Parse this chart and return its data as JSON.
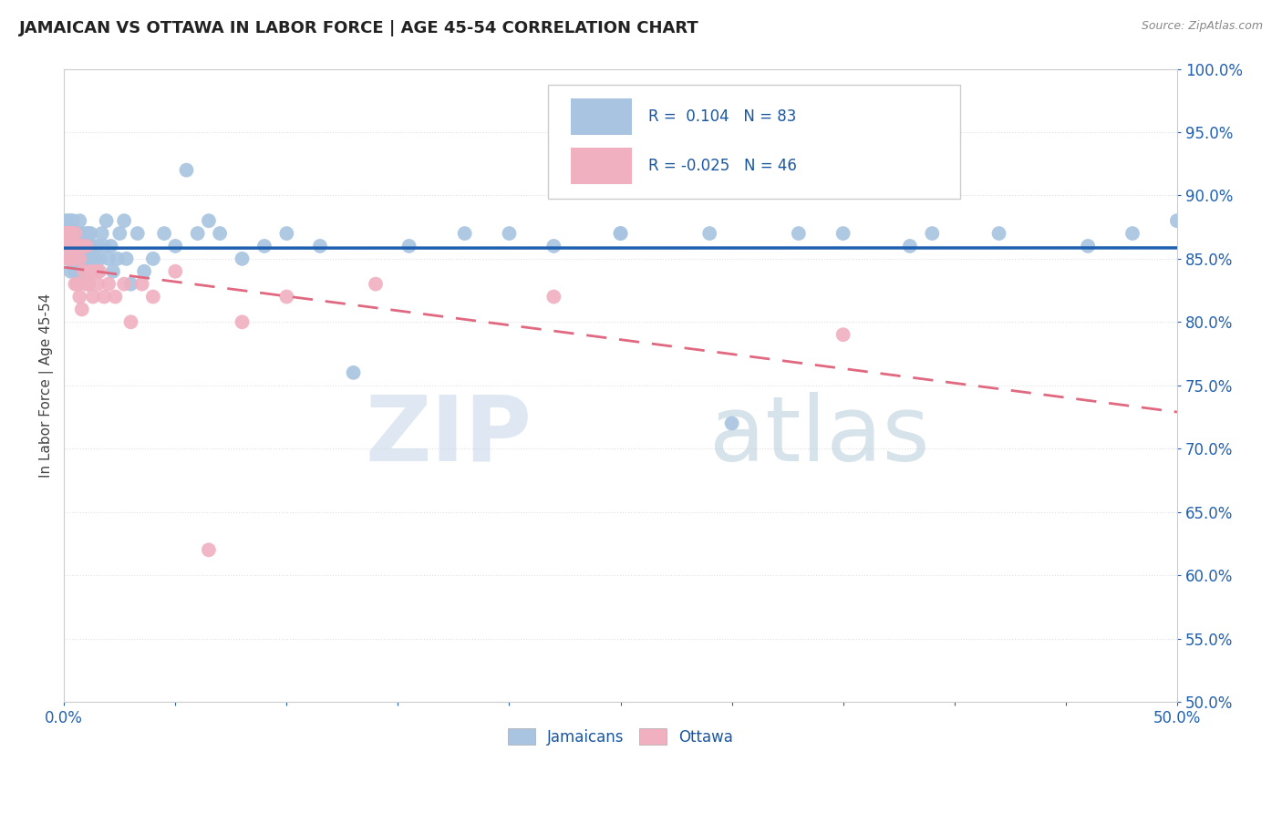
{
  "title": "JAMAICAN VS OTTAWA IN LABOR FORCE | AGE 45-54 CORRELATION CHART",
  "source": "Source: ZipAtlas.com",
  "ylabel": "In Labor Force | Age 45-54",
  "xlim": [
    0.0,
    0.5
  ],
  "ylim": [
    0.5,
    1.0
  ],
  "xticks": [
    0.0,
    0.05,
    0.1,
    0.15,
    0.2,
    0.25,
    0.3,
    0.35,
    0.4,
    0.45,
    0.5
  ],
  "yticks": [
    0.5,
    0.55,
    0.6,
    0.65,
    0.7,
    0.75,
    0.8,
    0.85,
    0.9,
    0.95,
    1.0
  ],
  "blue_color": "#a8c4e0",
  "pink_color": "#f0b0c0",
  "blue_line_color": "#2060b0",
  "pink_line_color": "#e06880",
  "R_blue": 0.104,
  "N_blue": 83,
  "R_pink": -0.025,
  "N_pink": 46,
  "legend_R_color": "#1a56a0",
  "watermark_blue": "#c8d8ea",
  "watermark_gray": "#b0c8d8",
  "jamaicans_x": [
    0.001,
    0.001,
    0.002,
    0.002,
    0.002,
    0.003,
    0.003,
    0.003,
    0.003,
    0.004,
    0.004,
    0.004,
    0.004,
    0.005,
    0.005,
    0.005,
    0.006,
    0.006,
    0.006,
    0.007,
    0.007,
    0.007,
    0.007,
    0.008,
    0.008,
    0.008,
    0.009,
    0.009,
    0.01,
    0.01,
    0.01,
    0.011,
    0.011,
    0.011,
    0.012,
    0.012,
    0.013,
    0.013,
    0.014,
    0.015,
    0.015,
    0.016,
    0.017,
    0.018,
    0.019,
    0.02,
    0.021,
    0.022,
    0.024,
    0.025,
    0.027,
    0.028,
    0.03,
    0.033,
    0.036,
    0.04,
    0.045,
    0.05,
    0.055,
    0.06,
    0.065,
    0.07,
    0.08,
    0.09,
    0.1,
    0.115,
    0.13,
    0.155,
    0.18,
    0.22,
    0.25,
    0.29,
    0.33,
    0.38,
    0.42,
    0.39,
    0.46,
    0.48,
    0.5,
    0.35,
    0.3,
    0.25,
    0.2
  ],
  "jamaicans_y": [
    0.87,
    0.88,
    0.85,
    0.87,
    0.88,
    0.84,
    0.86,
    0.87,
    0.88,
    0.85,
    0.86,
    0.87,
    0.88,
    0.84,
    0.86,
    0.87,
    0.83,
    0.85,
    0.87,
    0.84,
    0.85,
    0.86,
    0.88,
    0.84,
    0.86,
    0.87,
    0.85,
    0.86,
    0.84,
    0.85,
    0.87,
    0.83,
    0.86,
    0.87,
    0.85,
    0.87,
    0.85,
    0.86,
    0.85,
    0.84,
    0.86,
    0.85,
    0.87,
    0.86,
    0.88,
    0.85,
    0.86,
    0.84,
    0.85,
    0.87,
    0.88,
    0.85,
    0.83,
    0.87,
    0.84,
    0.85,
    0.87,
    0.86,
    0.92,
    0.87,
    0.88,
    0.87,
    0.85,
    0.86,
    0.87,
    0.86,
    0.76,
    0.86,
    0.87,
    0.86,
    0.87,
    0.87,
    0.87,
    0.86,
    0.87,
    0.87,
    0.86,
    0.87,
    0.88,
    0.87,
    0.72,
    0.87,
    0.87
  ],
  "ottawa_x": [
    0.001,
    0.001,
    0.001,
    0.002,
    0.002,
    0.002,
    0.002,
    0.003,
    0.003,
    0.003,
    0.003,
    0.004,
    0.004,
    0.004,
    0.005,
    0.005,
    0.005,
    0.006,
    0.006,
    0.007,
    0.007,
    0.008,
    0.008,
    0.009,
    0.01,
    0.01,
    0.011,
    0.012,
    0.013,
    0.014,
    0.015,
    0.016,
    0.018,
    0.02,
    0.023,
    0.027,
    0.03,
    0.035,
    0.04,
    0.05,
    0.065,
    0.08,
    0.1,
    0.14,
    0.22,
    0.35
  ],
  "ottawa_y": [
    0.87,
    0.87,
    0.87,
    0.86,
    0.87,
    0.87,
    0.85,
    0.85,
    0.86,
    0.87,
    0.87,
    0.85,
    0.86,
    0.87,
    0.83,
    0.85,
    0.87,
    0.83,
    0.86,
    0.82,
    0.85,
    0.81,
    0.86,
    0.84,
    0.83,
    0.86,
    0.83,
    0.84,
    0.82,
    0.84,
    0.83,
    0.84,
    0.82,
    0.83,
    0.82,
    0.83,
    0.8,
    0.83,
    0.82,
    0.84,
    0.62,
    0.8,
    0.82,
    0.83,
    0.82,
    0.79
  ]
}
